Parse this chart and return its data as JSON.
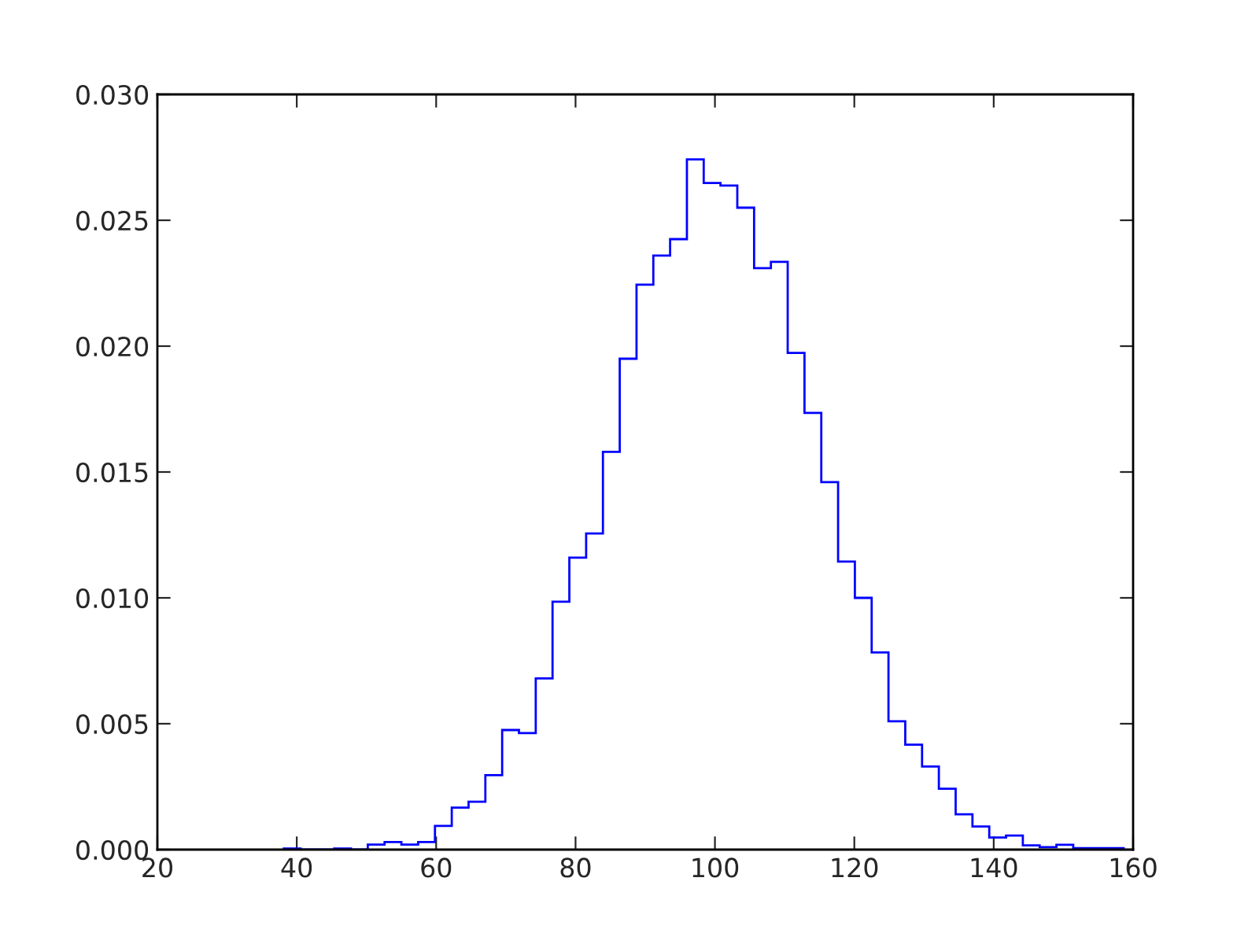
{
  "chart_data": {
    "type": "histogram",
    "bins": [
      38.14,
      40.55,
      42.96,
      45.37,
      47.78,
      50.19,
      52.6,
      55.01,
      57.42,
      59.83,
      62.24,
      64.65,
      67.06,
      69.47,
      71.88,
      74.29,
      76.7,
      79.11,
      81.52,
      83.93,
      86.34,
      88.75,
      91.16,
      93.57,
      95.98,
      98.39,
      100.8,
      103.21,
      105.62,
      108.03,
      110.44,
      112.85,
      115.26,
      117.67,
      120.08,
      122.49,
      124.9,
      127.31,
      129.72,
      132.13,
      134.54,
      136.95,
      139.36,
      141.77,
      144.18,
      146.59,
      149.0,
      151.41,
      153.82,
      156.23,
      158.64
    ],
    "values": [
      4e-05,
      0,
      0,
      4e-05,
      0,
      0.0002,
      0.0003,
      0.0002,
      0.0003,
      0.00094,
      0.00167,
      0.0019,
      0.00296,
      0.00475,
      0.00463,
      0.0068,
      0.00985,
      0.0116,
      0.01256,
      0.0158,
      0.0195,
      0.02244,
      0.0236,
      0.02425,
      0.02742,
      0.02648,
      0.02638,
      0.0255,
      0.0231,
      0.02335,
      0.01973,
      0.01735,
      0.0146,
      0.01144,
      0.01,
      0.00783,
      0.0051,
      0.00417,
      0.0033,
      0.00242,
      0.0014,
      0.00092,
      0.00048,
      0.00056,
      0.00017,
      0.0001,
      0.00019,
      6e-05,
      6e-05,
      6e-05
    ],
    "color": "#0000ff",
    "xlim": [
      20,
      160
    ],
    "xticks": [
      20,
      40,
      60,
      80,
      100,
      120,
      140,
      160
    ],
    "ylim": [
      0,
      0.03
    ],
    "yticks": [
      {
        "value": 0,
        "label": "0.000"
      },
      {
        "value": 0.005,
        "label": "0.005"
      },
      {
        "value": 0.01,
        "label": "0.010"
      },
      {
        "value": 0.015,
        "label": "0.015"
      },
      {
        "value": 0.02,
        "label": "0.020"
      },
      {
        "value": 0.025,
        "label": "0.025"
      },
      {
        "value": 0.03,
        "label": "0.030"
      }
    ],
    "grid": false
  }
}
